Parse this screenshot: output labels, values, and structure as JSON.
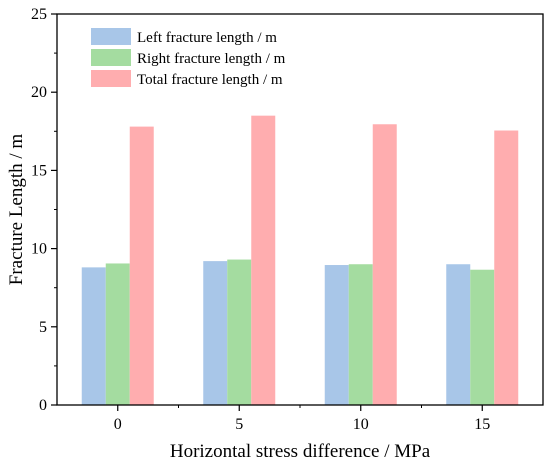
{
  "chart_data": {
    "type": "bar",
    "categories": [
      "0",
      "5",
      "10",
      "15"
    ],
    "series": [
      {
        "name": "Left fracture length / m",
        "color": "#a8c6e8",
        "values": [
          8.8,
          9.2,
          8.95,
          9.0
        ]
      },
      {
        "name": "Right fracture length / m",
        "color": "#a4dca0",
        "values": [
          9.05,
          9.3,
          9.0,
          8.65
        ]
      },
      {
        "name": "Total fracture length / m",
        "color": "#ffadaf",
        "values": [
          17.8,
          18.5,
          17.95,
          17.55
        ]
      }
    ],
    "xlabel": "Horizontal stress difference / MPa",
    "ylabel": "Fracture Length / m",
    "ylim": [
      0,
      25
    ],
    "yticks": [
      0,
      5,
      10,
      15,
      20,
      25
    ],
    "legend_position": "top-left",
    "grid": false
  }
}
